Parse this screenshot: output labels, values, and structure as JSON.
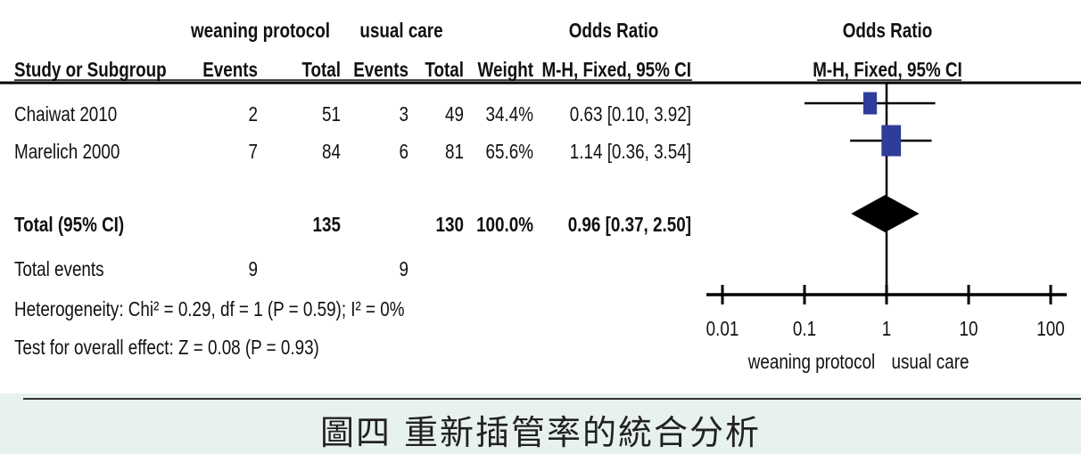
{
  "chart_data": {
    "type": "forest",
    "group_headers": {
      "experimental": "weaning protocol",
      "control": "usual care",
      "effect_left": "Odds Ratio",
      "effect_right": "Odds Ratio"
    },
    "columns": [
      "Study or Subgroup",
      "Events",
      "Total",
      "Events",
      "Total",
      "Weight",
      "M-H, Fixed, 95% CI",
      "M-H, Fixed, 95% CI"
    ],
    "studies": [
      {
        "name": "Chaiwat 2010",
        "events_exp": "2",
        "total_exp": "51",
        "events_ctrl": "3",
        "total_ctrl": "49",
        "weight": "34.4%",
        "ci_text": "0.63 [0.10, 3.92]",
        "or": 0.63,
        "lower": 0.1,
        "upper": 3.92,
        "weight_pct": 34.4
      },
      {
        "name": "Marelich 2000",
        "events_exp": "7",
        "total_exp": "84",
        "events_ctrl": "6",
        "total_ctrl": "81",
        "weight": "65.6%",
        "ci_text": "1.14 [0.36, 3.54]",
        "or": 1.14,
        "lower": 0.36,
        "upper": 3.54,
        "weight_pct": 65.6
      }
    ],
    "total": {
      "label": "Total (95% CI)",
      "total_exp": "135",
      "total_ctrl": "130",
      "weight": "100.0%",
      "ci_text": "0.96 [0.37, 2.50]",
      "or": 0.96,
      "lower": 0.37,
      "upper": 2.5
    },
    "total_events": {
      "label": "Total events",
      "exp": "9",
      "ctrl": "9"
    },
    "heterogeneity": "Heterogeneity: Chi² = 0.29, df = 1 (P = 0.59); I² = 0%",
    "overall_effect": "Test for overall effect: Z = 0.08 (P = 0.93)",
    "axis": {
      "scale": "log",
      "ticks": [
        "0.01",
        "0.1",
        "1",
        "10",
        "100"
      ],
      "tick_values": [
        0.01,
        0.1,
        1,
        10,
        100
      ]
    },
    "favours_left": "weaning protocol",
    "favours_right": "usual care",
    "colors": {
      "box": "#2e3d99",
      "diamond": "#000000",
      "line": "#000000"
    }
  },
  "caption": "圖四  重新插管率的統合分析"
}
